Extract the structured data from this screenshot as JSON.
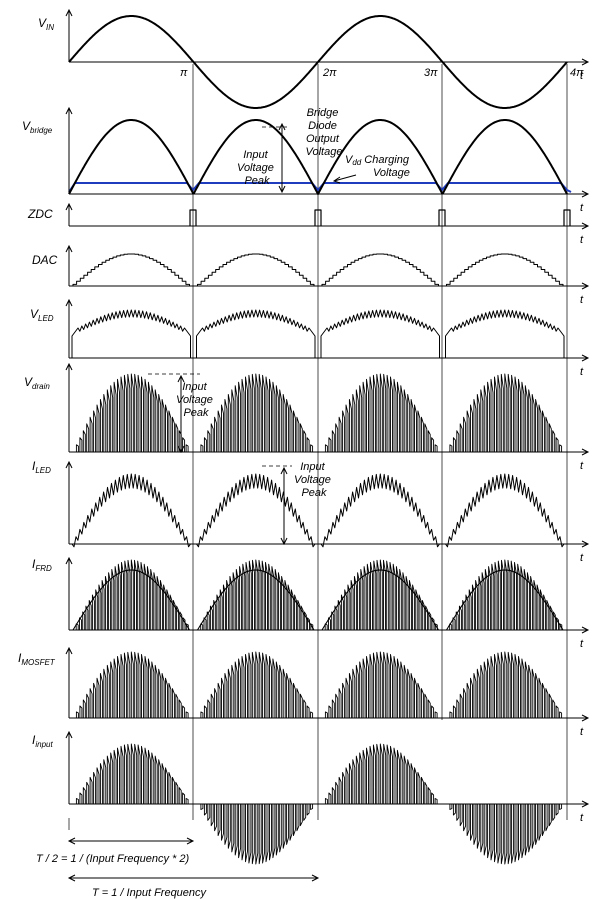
{
  "panels": [
    {
      "id": "vin",
      "label": "V",
      "sub": "IN"
    },
    {
      "id": "vbridge",
      "label": "V",
      "sub": "bridge"
    },
    {
      "id": "zdc",
      "label": "ZDC",
      "sub": ""
    },
    {
      "id": "dac",
      "label": "DAC",
      "sub": ""
    },
    {
      "id": "vled",
      "label": "V",
      "sub": "LED"
    },
    {
      "id": "vdrain",
      "label": "V",
      "sub": "drain"
    },
    {
      "id": "iled",
      "label": "I",
      "sub": "LED"
    },
    {
      "id": "ifrd",
      "label": "I",
      "sub": "FRD"
    },
    {
      "id": "imosfet",
      "label": "I",
      "sub": "MOSFET"
    },
    {
      "id": "iinput",
      "label": "I",
      "sub": "input"
    }
  ],
  "axis_label": "t",
  "phase_ticks": [
    "π",
    "2π",
    "3π",
    "4π"
  ],
  "annotations": {
    "bridge_diode_output": [
      "Bridge",
      "Diode",
      "Output",
      "Voltage"
    ],
    "input_voltage_peak": [
      "Input",
      "Voltage",
      "Peak"
    ],
    "vdd_charging": {
      "v": "V",
      "sub": "dd",
      "text": " Charging",
      "line2": "Voltage"
    },
    "drain_peak": [
      "Input",
      "Voltage",
      "Peak"
    ],
    "iled_peak": [
      "Input",
      "Voltage",
      "Peak"
    ]
  },
  "periods": {
    "half": "T / 2 = 1 / (Input Frequency * 2)",
    "full": "T = 1 / Input Frequency"
  },
  "colors": {
    "trace": "#000000",
    "vdd": "#1f3cbf"
  }
}
